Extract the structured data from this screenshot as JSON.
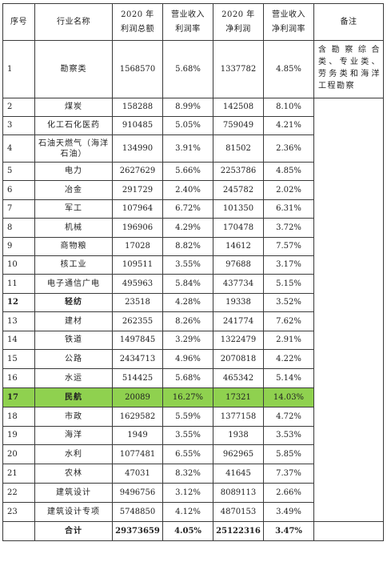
{
  "header": {
    "seq": "序号",
    "industry": "行业名称",
    "total_profit": "2020 年\n利润总额",
    "revenue_profit_rate": "营业收入\n利润率",
    "net_profit": "2020 年\n净利润",
    "revenue_net_rate": "营业收入\n净利润率",
    "note": "备注"
  },
  "note_text": "含勘察综合类、专业类、劳务类和海洋工程勘察",
  "rows": [
    {
      "seq": "1",
      "industry": "勘察类",
      "total_profit": "1568570",
      "profit_rate": "5.68%",
      "net_profit": "1337782",
      "net_rate": "4.85%"
    },
    {
      "seq": "2",
      "industry": "煤炭",
      "total_profit": "158288",
      "profit_rate": "8.99%",
      "net_profit": "142508",
      "net_rate": "8.10%"
    },
    {
      "seq": "3",
      "industry": "化工石化医药",
      "total_profit": "910485",
      "profit_rate": "5.05%",
      "net_profit": "759049",
      "net_rate": "4.21%"
    },
    {
      "seq": "4",
      "industry": "石油天燃气（海洋石油）",
      "total_profit": "134990",
      "profit_rate": "3.91%",
      "net_profit": "81502",
      "net_rate": "2.36%"
    },
    {
      "seq": "5",
      "industry": "电力",
      "total_profit": "2627629",
      "profit_rate": "5.66%",
      "net_profit": "2253786",
      "net_rate": "4.85%"
    },
    {
      "seq": "6",
      "industry": "冶金",
      "total_profit": "291729",
      "profit_rate": "2.40%",
      "net_profit": "245782",
      "net_rate": "2.02%"
    },
    {
      "seq": "7",
      "industry": "军工",
      "total_profit": "107964",
      "profit_rate": "6.72%",
      "net_profit": "101350",
      "net_rate": "6.31%"
    },
    {
      "seq": "8",
      "industry": "机械",
      "total_profit": "196906",
      "profit_rate": "4.29%",
      "net_profit": "170478",
      "net_rate": "3.72%"
    },
    {
      "seq": "9",
      "industry": "商物粮",
      "total_profit": "17028",
      "profit_rate": "8.82%",
      "net_profit": "14612",
      "net_rate": "7.57%"
    },
    {
      "seq": "10",
      "industry": "核工业",
      "total_profit": "109511",
      "profit_rate": "3.55%",
      "net_profit": "97688",
      "net_rate": "3.17%"
    },
    {
      "seq": "11",
      "industry": "电子通信广电",
      "total_profit": "495963",
      "profit_rate": "5.84%",
      "net_profit": "437734",
      "net_rate": "5.15%"
    },
    {
      "seq": "12",
      "industry": "轻纺",
      "total_profit": "23518",
      "profit_rate": "4.28%",
      "net_profit": "19338",
      "net_rate": "3.52%"
    },
    {
      "seq": "13",
      "industry": "建材",
      "total_profit": "262355",
      "profit_rate": "8.26%",
      "net_profit": "241774",
      "net_rate": "7.62%"
    },
    {
      "seq": "14",
      "industry": "铁道",
      "total_profit": "1497845",
      "profit_rate": "3.29%",
      "net_profit": "1322479",
      "net_rate": "2.91%"
    },
    {
      "seq": "15",
      "industry": "公路",
      "total_profit": "2434713",
      "profit_rate": "4.96%",
      "net_profit": "2070818",
      "net_rate": "4.22%"
    },
    {
      "seq": "16",
      "industry": "水运",
      "total_profit": "514425",
      "profit_rate": "5.68%",
      "net_profit": "465342",
      "net_rate": "5.14%"
    },
    {
      "seq": "17",
      "industry": "民航",
      "total_profit": "20089",
      "profit_rate": "16.27%",
      "net_profit": "17321",
      "net_rate": "14.03%"
    },
    {
      "seq": "18",
      "industry": "市政",
      "total_profit": "1629582",
      "profit_rate": "5.59%",
      "net_profit": "1377158",
      "net_rate": "4.72%"
    },
    {
      "seq": "19",
      "industry": "海洋",
      "total_profit": "1949",
      "profit_rate": "3.55%",
      "net_profit": "1938",
      "net_rate": "3.53%"
    },
    {
      "seq": "20",
      "industry": "水利",
      "total_profit": "1077481",
      "profit_rate": "6.55%",
      "net_profit": "962965",
      "net_rate": "5.85%"
    },
    {
      "seq": "21",
      "industry": "农林",
      "total_profit": "47031",
      "profit_rate": "8.32%",
      "net_profit": "41645",
      "net_rate": "7.37%"
    },
    {
      "seq": "22",
      "industry": "建筑设计",
      "total_profit": "9496756",
      "profit_rate": "3.12%",
      "net_profit": "8089113",
      "net_rate": "2.66%"
    },
    {
      "seq": "23",
      "industry": "建筑设计专项",
      "total_profit": "5748850",
      "profit_rate": "4.12%",
      "net_profit": "4870153",
      "net_rate": "3.49%"
    }
  ],
  "total": {
    "label": "合计",
    "total_profit": "29373659",
    "profit_rate": "4.05%",
    "net_profit": "25122316",
    "net_rate": "3.47%"
  },
  "highlight_color": "#8fd14f"
}
